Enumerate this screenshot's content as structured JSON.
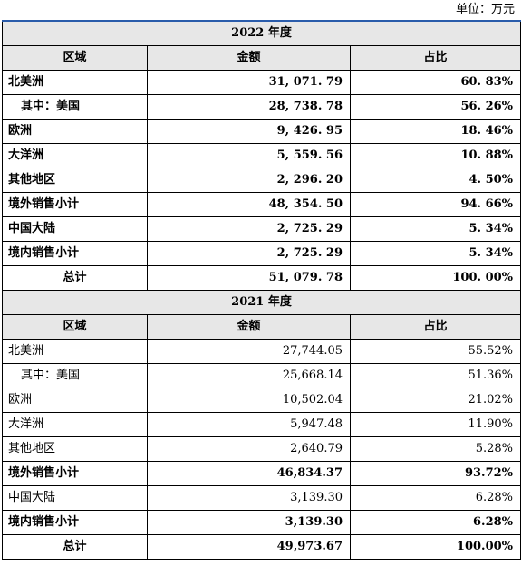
{
  "unit_label": "单位：万元",
  "header": {
    "region": "区域",
    "amount": "金额",
    "share": "占比"
  },
  "sections": [
    {
      "year_title": "2022 年度",
      "rows": [
        {
          "region": "北美洲",
          "amount": "31, 071. 79",
          "share": "60. 83%"
        },
        {
          "region": "其中：美国",
          "amount": "28, 738. 78",
          "share": "56. 26%"
        },
        {
          "region": "欧洲",
          "amount": "9, 426. 95",
          "share": "18. 46%"
        },
        {
          "region": "大洋洲",
          "amount": "5, 559. 56",
          "share": "10. 88%"
        },
        {
          "region": "其他地区",
          "amount": "2, 296. 20",
          "share": "4. 50%"
        },
        {
          "region": "境外销售小计",
          "amount": "48, 354. 50",
          "share": "94. 66%"
        },
        {
          "region": "中国大陆",
          "amount": "2, 725. 29",
          "share": "5. 34%"
        },
        {
          "region": "境内销售小计",
          "amount": "2, 725. 29",
          "share": "5. 34%"
        }
      ],
      "total": {
        "region": "总计",
        "amount": "51, 079. 78",
        "share": "100. 00%"
      }
    },
    {
      "year_title": "2021 年度",
      "rows": [
        {
          "region": "北美洲",
          "amount": "27,744.05",
          "share": "55.52%"
        },
        {
          "region": "其中：美国",
          "amount": "25,668.14",
          "share": "51.36%"
        },
        {
          "region": "欧洲",
          "amount": "10,502.04",
          "share": "21.02%"
        },
        {
          "region": "大洋洲",
          "amount": "5,947.48",
          "share": "11.90%"
        },
        {
          "region": "其他地区",
          "amount": "2,640.79",
          "share": "5.28%"
        },
        {
          "region": "境外销售小计",
          "amount": "46,834.37",
          "share": "93.72%"
        },
        {
          "region": "中国大陆",
          "amount": "3,139.30",
          "share": "6.28%"
        },
        {
          "region": "境内销售小计",
          "amount": "3,139.30",
          "share": "6.28%"
        }
      ],
      "total": {
        "region": "总计",
        "amount": "49,973.67",
        "share": "100.00%"
      }
    }
  ]
}
